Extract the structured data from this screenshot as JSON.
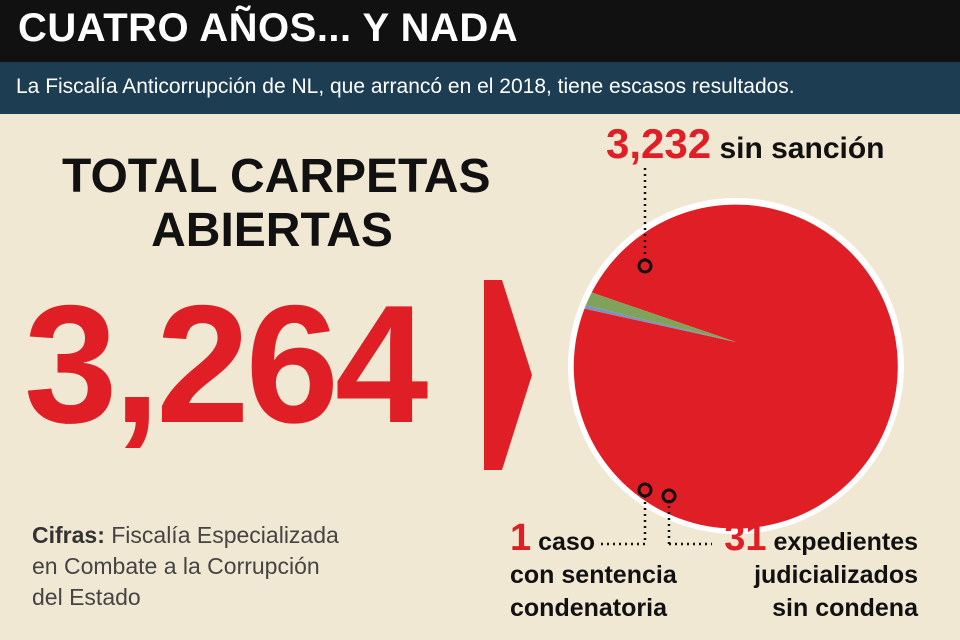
{
  "header": {
    "title": "CUATRO AÑOS... Y NADA",
    "subtitle": "La Fiscalía Anticorrupción de NL, que arrancó en el 2018, tiene escasos resultados."
  },
  "total": {
    "label_line1": "TOTAL CARPETAS",
    "label_line2": "ABIERTAS",
    "value": "3,264"
  },
  "source": {
    "prefix": "Cifras:",
    "line1": " Fiscalía Especializada",
    "line2": "en Combate a la Corrupción",
    "line3": "del Estado"
  },
  "colors": {
    "accent_red": "#e01e25",
    "header_bg": "#111111",
    "subheader_bg": "#1d3d52",
    "background": "#f0e8d3",
    "slice_blue": "#7f8fc4",
    "slice_green": "#7fa35a"
  },
  "annotations": {
    "sin_sancion": {
      "number": "3,232",
      "text": " sin sanción"
    },
    "caso": {
      "number": "1",
      "line1": " caso",
      "line2": "con sentencia",
      "line3": "condenatoria"
    },
    "expedientes": {
      "number": "31",
      "line1": " expedientes",
      "line2": "judicializados",
      "line3": "sin condena"
    }
  },
  "chart_data": {
    "type": "pie",
    "total": 3264,
    "slices": [
      {
        "name": "sin sanción",
        "value": 3232,
        "color": "#e01e25"
      },
      {
        "name": "con sentencia condenatoria",
        "value": 1,
        "color": "#7f8fc4"
      },
      {
        "name": "expedientes judicializados sin condena",
        "value": 31,
        "color": "#7fa35a"
      }
    ]
  }
}
